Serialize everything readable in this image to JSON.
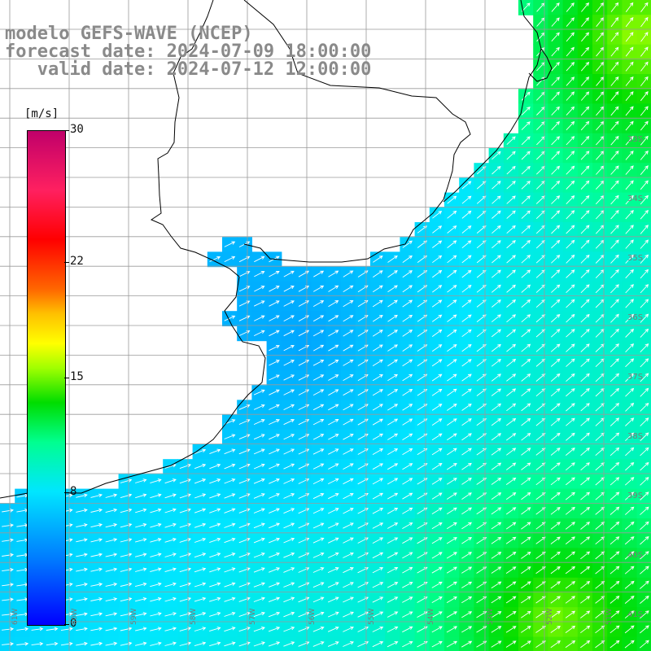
{
  "header": {
    "line1": "modelo GEFS-WAVE (NCEP)",
    "line2": "forecast date: 2024-07-09 18:00:00",
    "line3": "   valid date: 2024-07-12 12:00:00"
  },
  "colorbar": {
    "unit": "[m/s]",
    "min": 0,
    "max": 30,
    "ticks": [
      {
        "label": "30",
        "value": 30
      },
      {
        "label": "22",
        "value": 22
      },
      {
        "label": "15",
        "value": 15
      },
      {
        "label": "8",
        "value": 8
      },
      {
        "label": "0",
        "value": 0
      }
    ]
  },
  "lat_labels": [
    {
      "label": "33S",
      "row": 2
    },
    {
      "label": "34S",
      "row": 3
    },
    {
      "label": "35S",
      "row": 4
    },
    {
      "label": "36S",
      "row": 5
    },
    {
      "label": "37S",
      "row": 6
    },
    {
      "label": "38S",
      "row": 7
    },
    {
      "label": "39S",
      "row": 8
    },
    {
      "label": "40S",
      "row": 9
    },
    {
      "label": "41S",
      "row": 10
    }
  ],
  "lon_labels": [
    "61W",
    "60W",
    "59W",
    "58W",
    "57W",
    "56W",
    "55W",
    "54W",
    "53W",
    "52W",
    "51W"
  ],
  "colors": {
    "land": "#ffffff",
    "grid": "#9a9a9a",
    "coast": "#000000",
    "arrow": "#ffffff",
    "title": "#8a8a8a"
  }
}
